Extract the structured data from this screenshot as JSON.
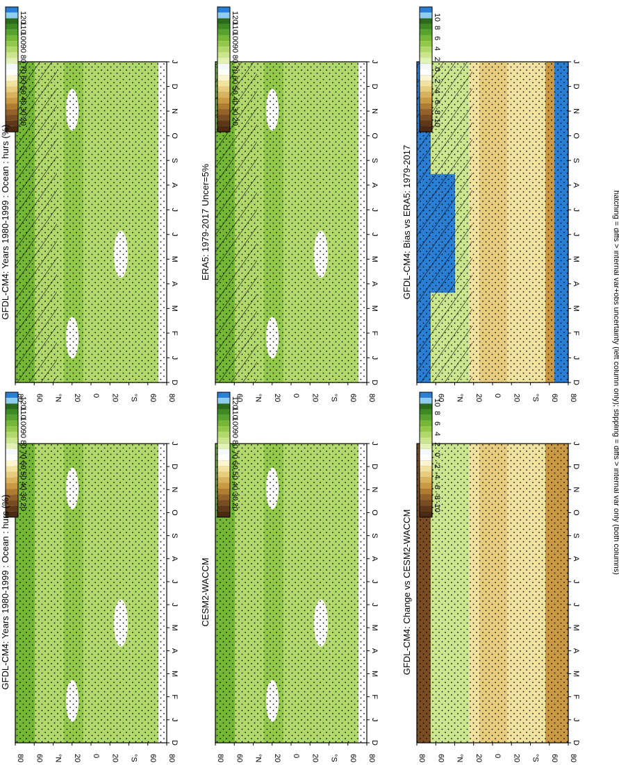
{
  "footer_note": "hatching = diffs > internal var+obs uncertainty (left column only); stippling = diffs > internal var only (both columns)",
  "month_labels": [
    "D",
    "J",
    "F",
    "M",
    "A",
    "M",
    "J",
    "J",
    "A",
    "S",
    "O",
    "N",
    "D",
    "J"
  ],
  "lat_labels": [
    "80",
    "60",
    "°N",
    "20",
    "0",
    "20",
    "°S",
    "60",
    "80"
  ],
  "abs_colorbar": {
    "labels": [
      "120",
      "110",
      "100",
      "90",
      "80",
      "70",
      "60",
      "50",
      "40",
      "30",
      "20"
    ],
    "colors": [
      "#2a7fd4",
      "#8fcdf0",
      "#2b6a1a",
      "#3d8a22",
      "#56a22c",
      "#74b836",
      "#93c94a",
      "#b0d86a",
      "#cbe68e",
      "#e2f1b6",
      "#f5f8f8",
      "#ffffff",
      "#fbf4cf",
      "#f1e2a0",
      "#e6cc7c",
      "#d8b25c",
      "#c99944",
      "#b07c30",
      "#93622a",
      "#7a4c24",
      "#5e3818",
      "#4a2a12"
    ]
  },
  "diff_colorbar": {
    "labels": [
      "10",
      "8",
      "6",
      "4",
      "2",
      "0",
      "-2",
      "-4",
      "-6",
      "-8",
      "-10"
    ],
    "colors": [
      "#2a7fd4",
      "#8fcdf0",
      "#2b6a1a",
      "#3d8a22",
      "#56a22c",
      "#74b836",
      "#93c94a",
      "#b0d86a",
      "#cbe68e",
      "#e2f1b6",
      "#f5f8f8",
      "#ffffff",
      "#fbf4cf",
      "#f1e2a0",
      "#e6cc7c",
      "#d8b25c",
      "#c99944",
      "#b07c30",
      "#93622a",
      "#7a4c24",
      "#5e3818",
      "#4a2a12"
    ]
  },
  "chart_data": [
    {
      "type": "heatmap",
      "title": "GFDL-CM4: Years 1980-1999 : Ocean : hurs (%)",
      "x": "month",
      "y": "latitude",
      "xlim": [
        "D",
        "J"
      ],
      "ylim": [
        -90,
        90
      ],
      "colorbar": "abs",
      "values_range": [
        20,
        120
      ],
      "typical_value": "80-95",
      "hatching": true,
      "stippling": true
    },
    {
      "type": "heatmap",
      "title": "GFDL-CM4: Years 1980-1999 : Ocean : hurs (%)",
      "x": "month",
      "y": "latitude",
      "xlim": [
        "D",
        "J"
      ],
      "ylim": [
        -90,
        90
      ],
      "colorbar": "abs",
      "values_range": [
        20,
        120
      ],
      "typical_value": "80-95",
      "hatching": false,
      "stippling": true
    },
    {
      "type": "heatmap",
      "title": "ERA5: 1979-2017 Uncer=5%",
      "x": "month",
      "y": "latitude",
      "xlim": [
        "D",
        "J"
      ],
      "ylim": [
        -90,
        90
      ],
      "colorbar": "abs",
      "values_range": [
        20,
        120
      ],
      "typical_value": "80-95",
      "hatching": true,
      "stippling": true
    },
    {
      "type": "heatmap",
      "title": "CESM2-WACCM",
      "x": "month",
      "y": "latitude",
      "xlim": [
        "D",
        "J"
      ],
      "ylim": [
        -90,
        90
      ],
      "colorbar": "abs",
      "values_range": [
        20,
        120
      ],
      "typical_value": "80-95",
      "hatching": false,
      "stippling": true
    },
    {
      "type": "heatmap",
      "title": "GFDL-CM4: Bias vs ERA5: 1979-2017",
      "x": "month",
      "y": "latitude",
      "xlim": [
        "D",
        "J"
      ],
      "ylim": [
        -90,
        90
      ],
      "colorbar": "diff",
      "values_range": [
        -10,
        10
      ],
      "hatching": true,
      "stippling": true
    },
    {
      "type": "heatmap",
      "title": "GFDL-CM4: Change vs CESM2-WACCM",
      "x": "month",
      "y": "latitude",
      "xlim": [
        "D",
        "J"
      ],
      "ylim": [
        -90,
        90
      ],
      "colorbar": "diff",
      "values_range": [
        -10,
        10
      ],
      "hatching": false,
      "stippling": true
    }
  ]
}
